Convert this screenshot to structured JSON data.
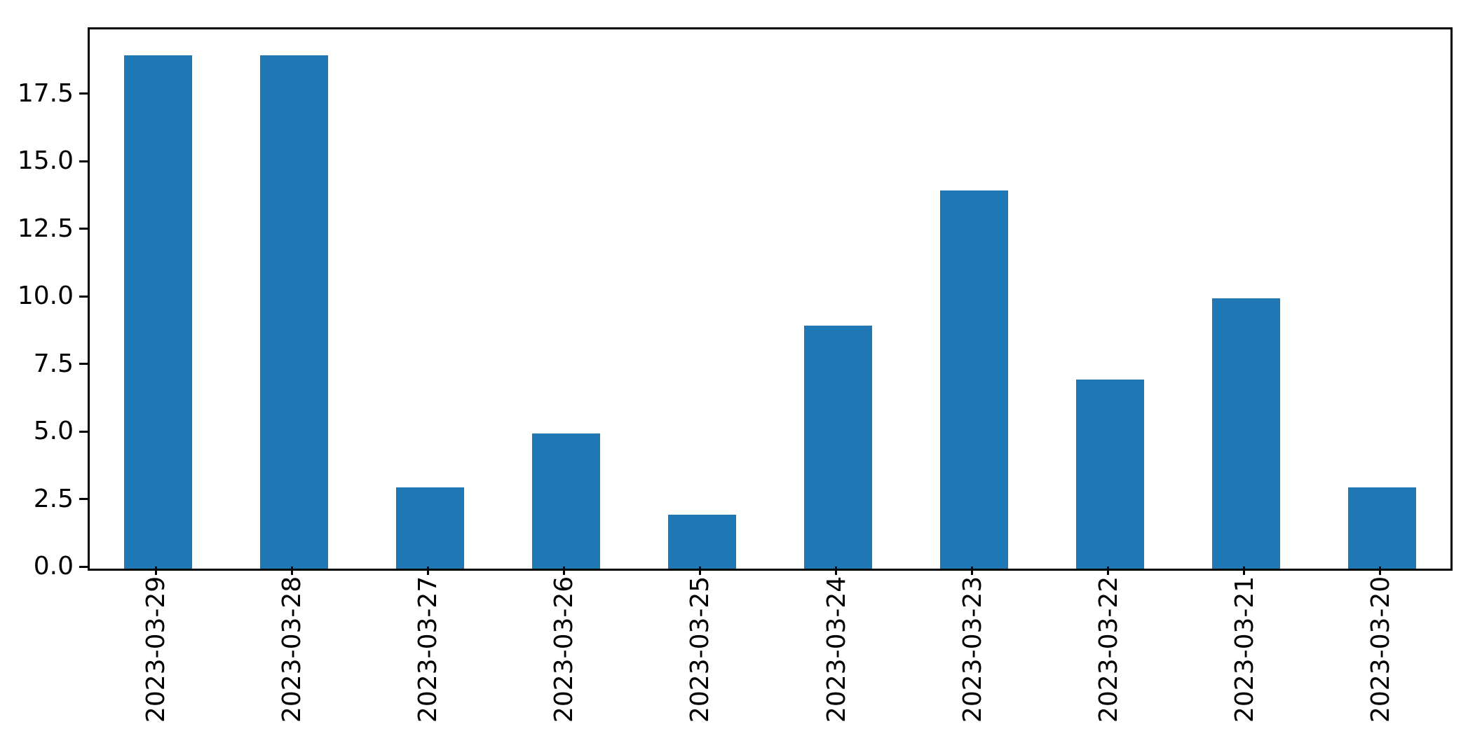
{
  "chart_data": {
    "type": "bar",
    "title": "",
    "xlabel": "",
    "ylabel": "",
    "categories": [
      "2023-03-29",
      "2023-03-28",
      "2023-03-27",
      "2023-03-26",
      "2023-03-25",
      "2023-03-24",
      "2023-03-23",
      "2023-03-22",
      "2023-03-21",
      "2023-03-20"
    ],
    "values": [
      19,
      19,
      3,
      5,
      2,
      9,
      14,
      7,
      10,
      3
    ],
    "ylim": [
      0,
      19.95
    ],
    "yticks": [
      0,
      2.5,
      5,
      7.5,
      10,
      12.5,
      15,
      17.5
    ],
    "ytick_labels": [
      "0.0",
      "2.5",
      "5.0",
      "7.5",
      "10.0",
      "12.5",
      "15.0",
      "17.5"
    ],
    "xtick_rotation_deg": 90,
    "grid": false,
    "legend_position": "none",
    "bar_color": "#1f77b4",
    "spine_color": "#000000",
    "background_color": "#ffffff",
    "bar_width_fraction": 0.5
  }
}
